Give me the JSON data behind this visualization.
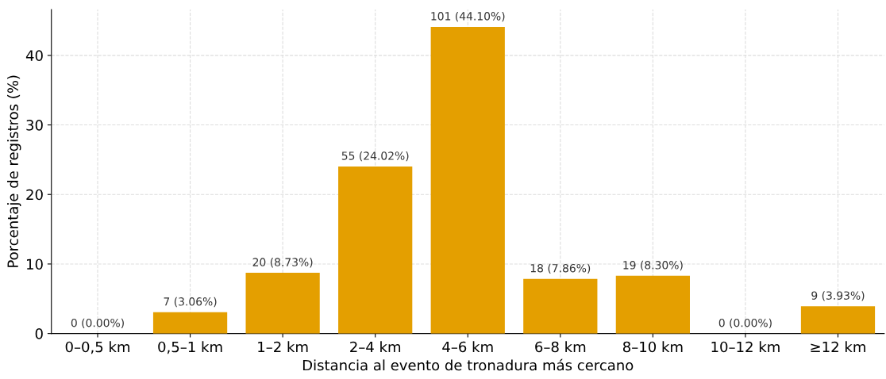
{
  "chart_data": {
    "type": "bar",
    "xlabel": "Distancia al evento de tronadura más cercano",
    "ylabel": "Porcentaje de registros (%)",
    "categories": [
      "0–0,5 km",
      "0,5–1 km",
      "1–2 km",
      "2–4 km",
      "4–6 km",
      "6–8 km",
      "8–10 km",
      "10–12 km",
      "≥12 km"
    ],
    "values": [
      0,
      3.06,
      8.73,
      24.02,
      44.1,
      7.86,
      8.3,
      0,
      3.93
    ],
    "value_labels": [
      "0 (0.00%)",
      "7 (3.06%)",
      "20 (8.73%)",
      "55 (24.02%)",
      "101 (44.10%)",
      "18 (7.86%)",
      "19 (8.30%)",
      "0 (0.00%)",
      "9 (3.93%)"
    ],
    "color": "#e49f00",
    "ylim": [
      0,
      46.6
    ],
    "yticks": [
      0,
      10,
      20,
      30,
      40
    ],
    "grid": true
  }
}
